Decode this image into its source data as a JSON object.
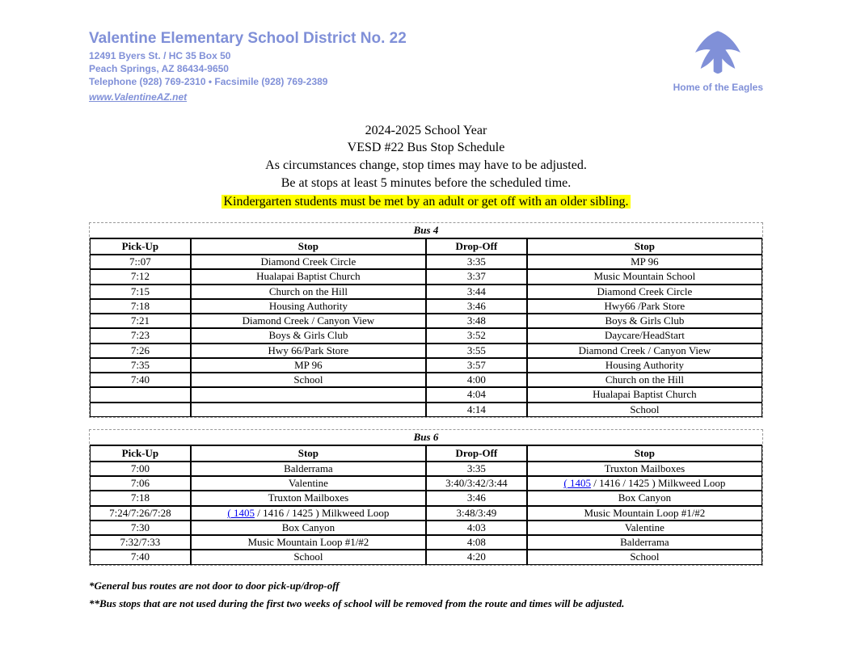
{
  "letterhead": {
    "title": "Valentine Elementary School District No. 22",
    "addr1": "12491 Byers St. / HC 35 Box 50",
    "addr2": "Peach Springs, AZ 86434-9650",
    "phone": "Telephone (928) 769-2310 • Facsimile (928) 769-2389",
    "link": "www.ValentineAZ.net",
    "slogan": "Home of the Eagles",
    "brand_color": "#8090d8"
  },
  "title": {
    "year": "2024-2025 School Year",
    "main": "VESD #22 Bus Stop Schedule",
    "note1": "As circumstances change, stop times may have to be adjusted.",
    "note2": "Be at stops at least 5 minutes before the scheduled time.",
    "highlight": "Kindergarten students must be met by an adult or get off with an older sibling."
  },
  "headers": {
    "pickup": "Pick-Up",
    "stop": "Stop",
    "dropoff": "Drop-Off"
  },
  "bus4": {
    "name": "Bus 4",
    "rows": [
      {
        "pu": "7::07",
        "s1": "Diamond Creek Circle",
        "do": "3:35",
        "s2": "MP 96"
      },
      {
        "pu": "7:12",
        "s1": "Hualapai Baptist Church",
        "do": "3:37",
        "s2": "Music Mountain School"
      },
      {
        "pu": "7:15",
        "s1": "Church on the Hill",
        "do": "3:44",
        "s2": "Diamond Creek Circle"
      },
      {
        "pu": "7:18",
        "s1": "Housing Authority",
        "do": "3:46",
        "s2": "Hwy66 /Park Store"
      },
      {
        "pu": "7:21",
        "s1": "Diamond Creek / Canyon View",
        "do": "3:48",
        "s2": "Boys & Girls Club"
      },
      {
        "pu": "7:23",
        "s1": "Boys & Girls Club",
        "do": "3:52",
        "s2": "Daycare/HeadStart"
      },
      {
        "pu": "7:26",
        "s1": "Hwy 66/Park Store",
        "do": "3:55",
        "s2": "Diamond Creek / Canyon View"
      },
      {
        "pu": "7:35",
        "s1": "MP 96",
        "do": "3:57",
        "s2": "Housing Authority"
      },
      {
        "pu": "7:40",
        "s1": "School",
        "do": "4:00",
        "s2": "Church on the Hill"
      },
      {
        "pu": "",
        "s1": "",
        "do": "4:04",
        "s2": "Hualapai Baptist Church"
      },
      {
        "pu": "",
        "s1": "",
        "do": "4:14",
        "s2": "School"
      }
    ]
  },
  "bus6": {
    "name": "Bus 6",
    "rows": [
      {
        "pu": "7:00",
        "s1": "Balderrama",
        "do": "3:35",
        "s2": "Truxton Mailboxes"
      },
      {
        "pu": "7:06",
        "s1": "Valentine",
        "do": "3:40/3:42/3:44",
        "s2_link_prefix": "( 1405",
        "s2_rest": " / 1416 / 1425 ) Milkweed Loop"
      },
      {
        "pu": "7:18",
        "s1": "Truxton Mailboxes",
        "do": "3:46",
        "s2": "Box Canyon"
      },
      {
        "pu": "7:24/7:26/7:28",
        "s1_link_prefix": "( 1405",
        "s1_rest": " / 1416 / 1425 ) Milkweed Loop",
        "do": "3:48/3:49",
        "s2": "Music Mountain Loop #1/#2"
      },
      {
        "pu": "7:30",
        "s1": "Box Canyon",
        "do": "4:03",
        "s2": "Valentine"
      },
      {
        "pu": "7:32/7:33",
        "s1": "Music Mountain Loop #1/#2",
        "do": "4:08",
        "s2": "Balderrama"
      },
      {
        "pu": "7:40",
        "s1": "School",
        "do": "4:20",
        "s2": "School"
      }
    ]
  },
  "footnotes": {
    "n1": "*General bus routes are not door to door pick-up/drop-off",
    "n2": "**Bus stops that are not used during the first two weeks of school will be removed from the route and times will be adjusted."
  },
  "style": {
    "highlight_bg": "#ffff00",
    "table_border_dash": "#999999",
    "cell_border": "#000000",
    "link_color": "#0000ee",
    "body_bg": "#ffffff"
  }
}
